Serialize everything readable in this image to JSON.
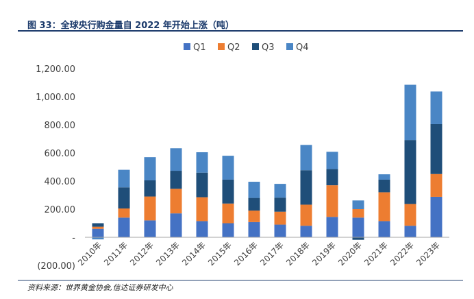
{
  "figure": {
    "title": "图 33：全球央行购金量自 2022 年开始上涨（吨）",
    "source": "资料来源：世界黄金协会,信达证券研发中心"
  },
  "chart_data": {
    "type": "bar",
    "stacked": true,
    "categories": [
      "2010年",
      "2011年",
      "2012年",
      "2013年",
      "2014年",
      "2015年",
      "2016年",
      "2017年",
      "2018年",
      "2019年",
      "2020年",
      "2021年",
      "2022年",
      "2023年"
    ],
    "series": [
      {
        "name": "Q1",
        "color": "#4472c4",
        "values": [
          60,
          140,
          120,
          170,
          115,
          100,
          108,
          90,
          82,
          145,
          140,
          115,
          82,
          288
        ]
      },
      {
        "name": "Q2",
        "color": "#ed7d31",
        "values": [
          15,
          65,
          170,
          175,
          170,
          140,
          82,
          92,
          150,
          225,
          60,
          205,
          155,
          162
        ]
      },
      {
        "name": "Q3",
        "color": "#1f4e79",
        "values": [
          25,
          150,
          115,
          128,
          175,
          170,
          90,
          100,
          245,
          115,
          -18,
          90,
          455,
          355
        ]
      },
      {
        "name": "Q4",
        "color": "#4a86c5",
        "values": [
          -15,
          125,
          165,
          160,
          145,
          170,
          115,
          98,
          180,
          123,
          62,
          38,
          393,
          232
        ]
      }
    ],
    "ylim": [
      -200,
      1200
    ],
    "yticks": [
      -200,
      0,
      200,
      400,
      600,
      800,
      1000,
      1200
    ],
    "ytick_labels": [
      "(200.00)",
      "-",
      "200.00",
      "400.00",
      "600.00",
      "800.00",
      "1,000.00",
      "1,200.00"
    ],
    "legend_position": "top",
    "grid": false
  }
}
